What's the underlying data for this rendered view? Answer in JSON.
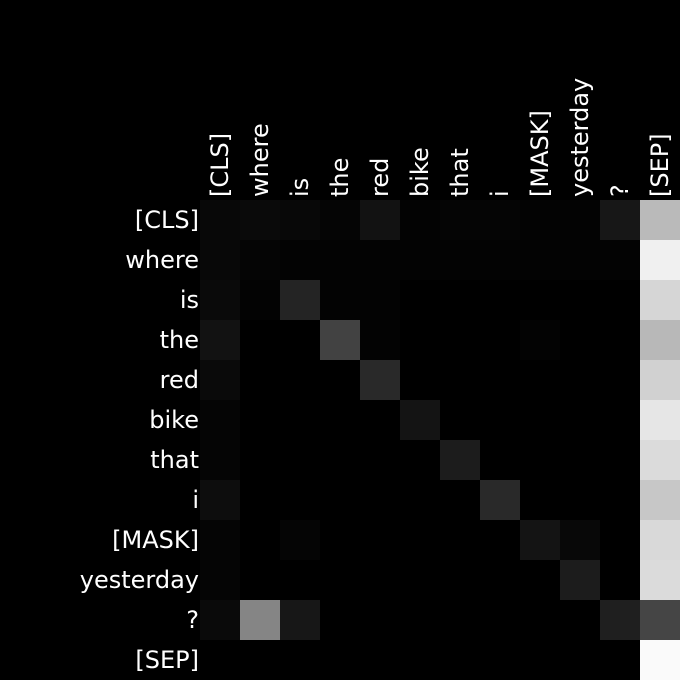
{
  "chart_data": {
    "type": "heatmap",
    "title": "",
    "xlabel": "",
    "ylabel": "",
    "x_labels": [
      "[CLS]",
      "where",
      "is",
      "the",
      "red",
      "bike",
      "that",
      "i",
      "[MASK]",
      "yesterday",
      "?",
      "[SEP]"
    ],
    "y_labels": [
      "[CLS]",
      "where",
      "is",
      "the",
      "red",
      "bike",
      "that",
      "i",
      "[MASK]",
      "yesterday",
      "?",
      "[SEP]"
    ],
    "value_range": [
      0,
      1
    ],
    "colormap": "grayscale (black = 0, white = 1)",
    "grid": false,
    "values": [
      [
        0.03,
        0.04,
        0.03,
        0.02,
        0.07,
        0.01,
        0.02,
        0.02,
        0.01,
        0.01,
        0.09,
        0.73
      ],
      [
        0.03,
        0.02,
        0.01,
        0.01,
        0.01,
        0.01,
        0.01,
        0.01,
        0.01,
        0.01,
        0.01,
        0.94
      ],
      [
        0.04,
        0.01,
        0.14,
        0.01,
        0.01,
        0.0,
        0.0,
        0.0,
        0.0,
        0.0,
        0.0,
        0.84
      ],
      [
        0.07,
        0.0,
        0.0,
        0.26,
        0.01,
        0.0,
        0.0,
        0.0,
        0.01,
        0.0,
        0.0,
        0.72
      ],
      [
        0.04,
        0.0,
        0.0,
        0.0,
        0.16,
        0.0,
        0.0,
        0.0,
        0.0,
        0.0,
        0.0,
        0.82
      ],
      [
        0.02,
        0.0,
        0.0,
        0.0,
        0.0,
        0.08,
        0.0,
        0.0,
        0.0,
        0.0,
        0.0,
        0.9
      ],
      [
        0.02,
        0.0,
        0.0,
        0.0,
        0.0,
        0.0,
        0.11,
        0.0,
        0.0,
        0.0,
        0.0,
        0.86
      ],
      [
        0.05,
        0.0,
        0.0,
        0.0,
        0.0,
        0.0,
        0.0,
        0.16,
        0.0,
        0.0,
        0.0,
        0.78
      ],
      [
        0.02,
        0.0,
        0.02,
        0.0,
        0.0,
        0.0,
        0.0,
        0.0,
        0.08,
        0.03,
        0.0,
        0.85
      ],
      [
        0.02,
        0.0,
        0.0,
        0.0,
        0.0,
        0.0,
        0.0,
        0.0,
        0.0,
        0.11,
        0.0,
        0.86
      ],
      [
        0.04,
        0.52,
        0.09,
        0.0,
        0.0,
        0.0,
        0.0,
        0.0,
        0.0,
        0.0,
        0.12,
        0.27
      ],
      [
        0.0,
        0.0,
        0.0,
        0.0,
        0.0,
        0.0,
        0.0,
        0.0,
        0.0,
        0.0,
        0.0,
        0.98
      ]
    ]
  }
}
